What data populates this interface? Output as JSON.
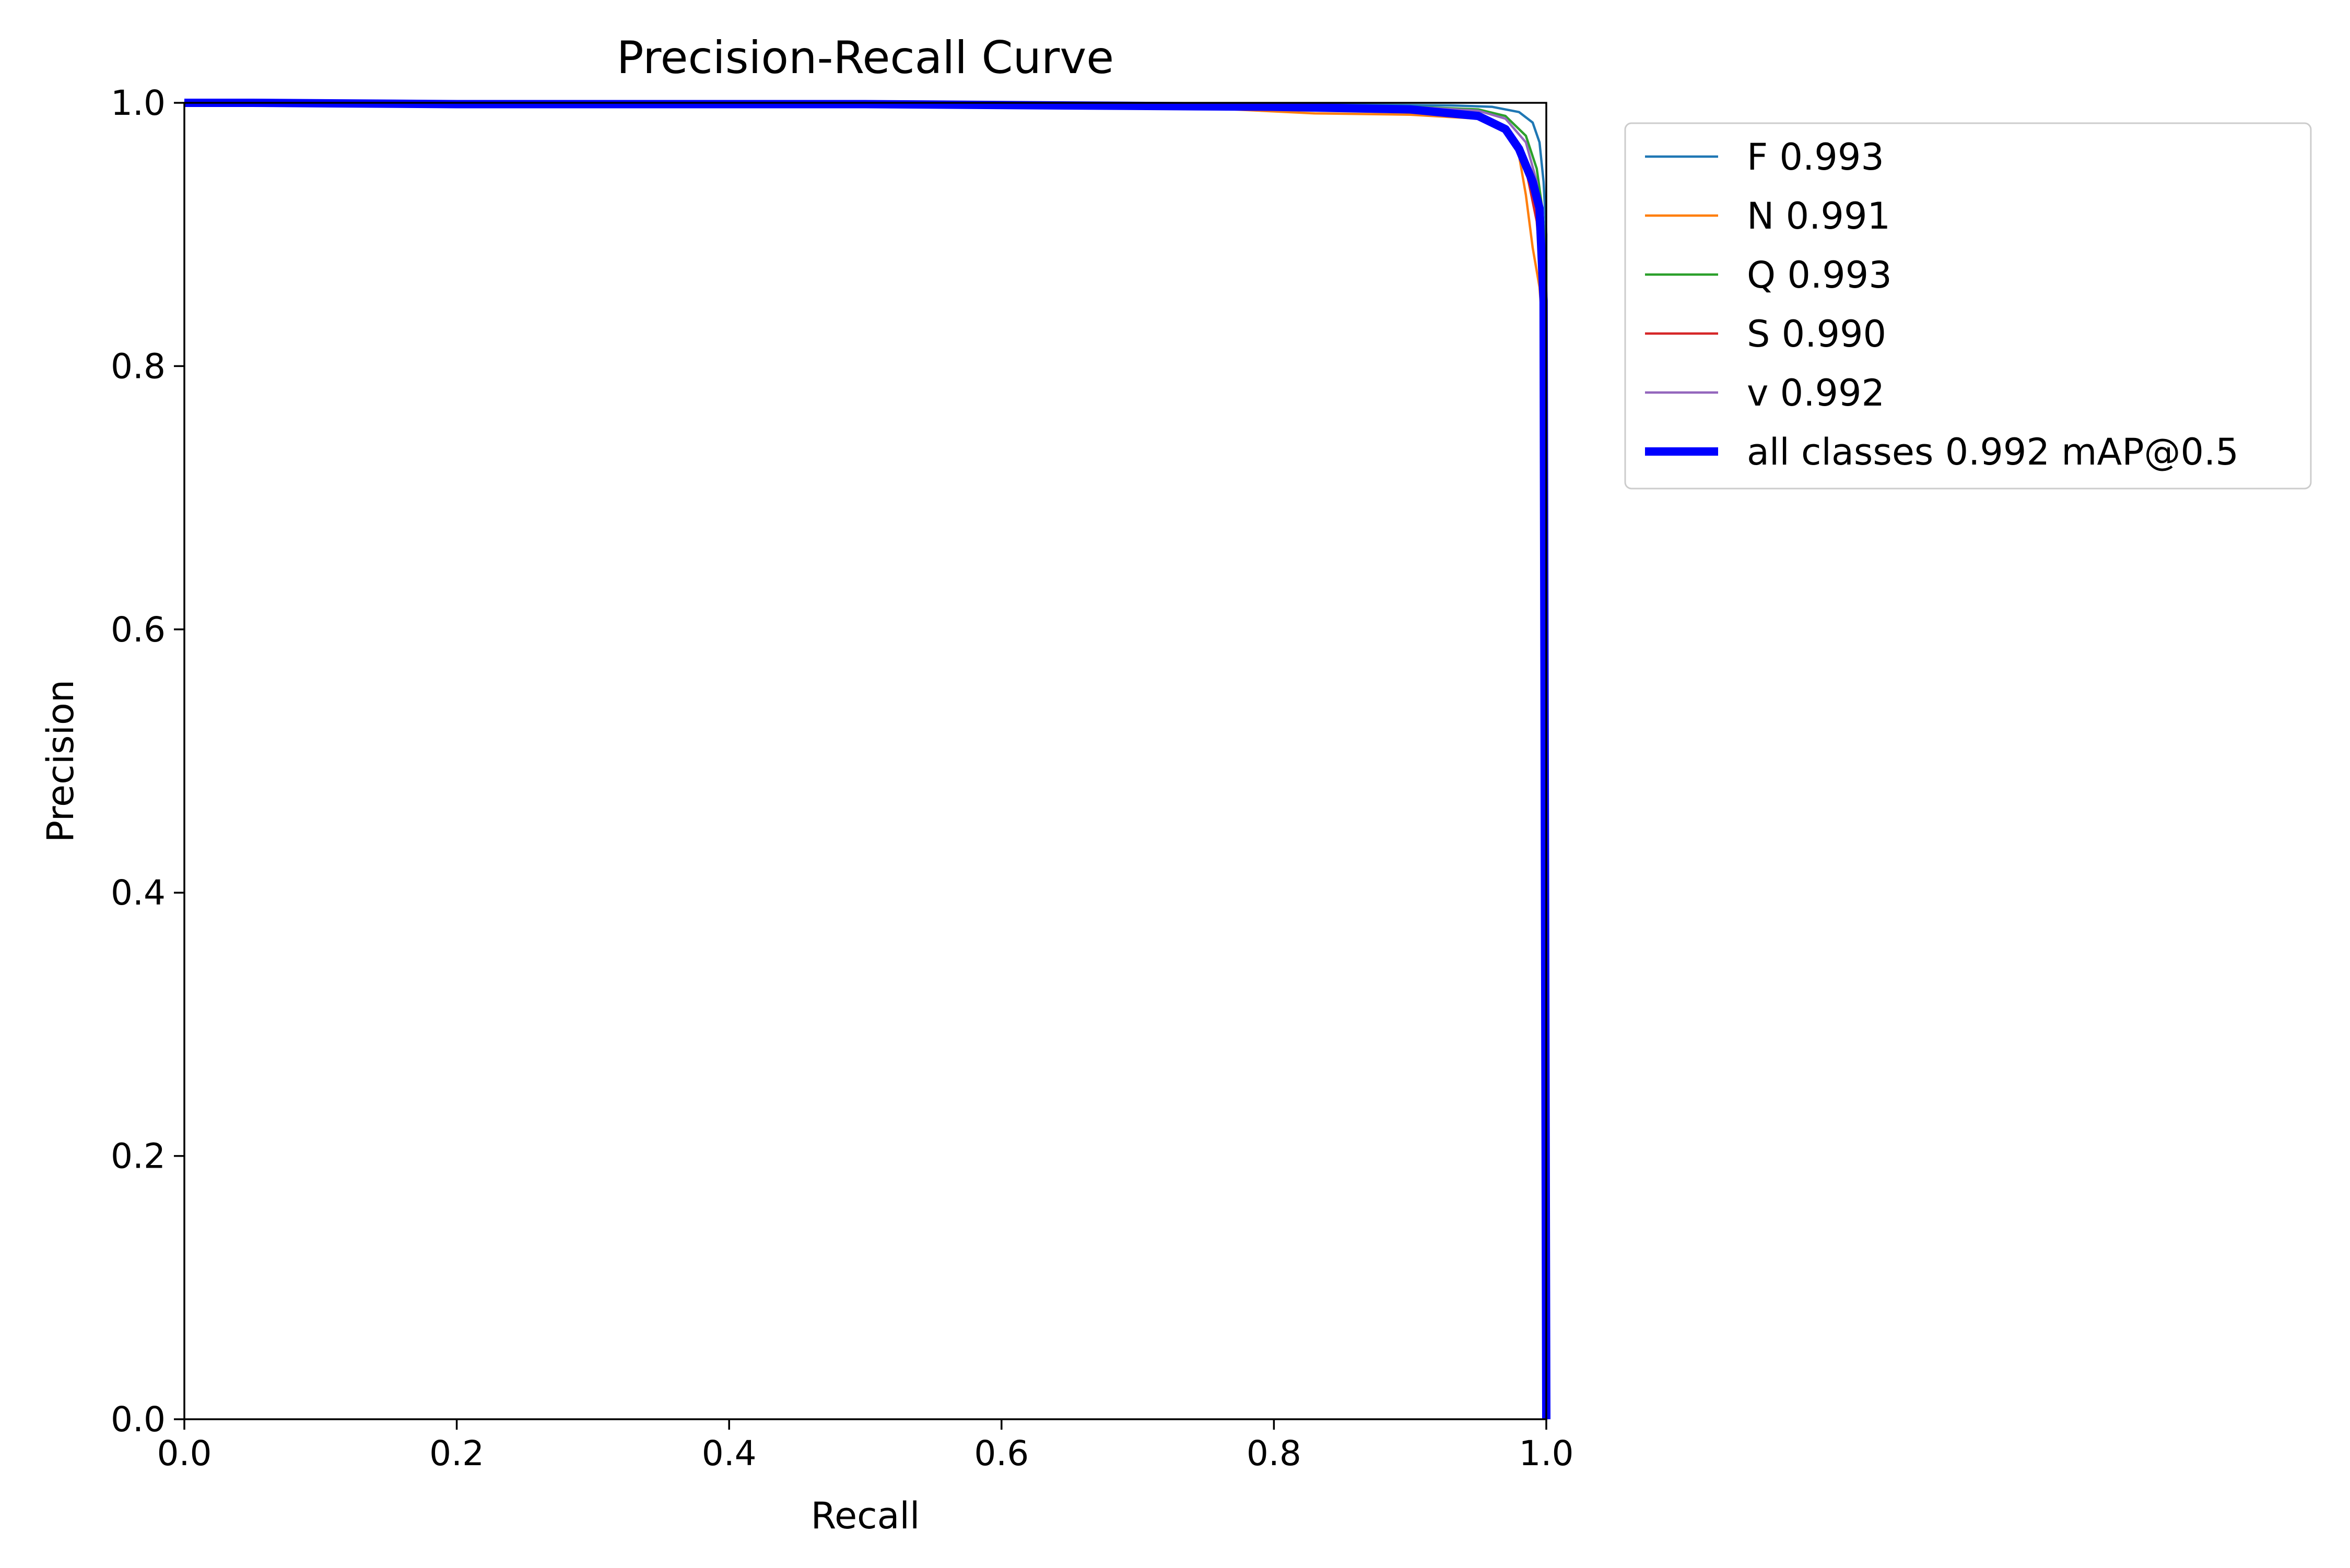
{
  "chart_data": {
    "type": "line",
    "title": "Precision-Recall Curve",
    "xlabel": "Recall",
    "ylabel": "Precision",
    "xlim": [
      0,
      1
    ],
    "ylim": [
      0,
      1
    ],
    "xticks": [
      "0.0",
      "0.2",
      "0.4",
      "0.6",
      "0.8",
      "1.0"
    ],
    "yticks": [
      "0.0",
      "0.2",
      "0.4",
      "0.6",
      "0.8",
      "1.0"
    ],
    "grid": false,
    "legend_position": "outside upper right",
    "series": [
      {
        "name": "F 0.993",
        "color": "#1f77b4",
        "emphasis": false,
        "x": [
          0,
          0.05,
          0.2,
          0.5,
          0.8,
          0.93,
          0.96,
          0.98,
          0.99,
          0.995,
          0.998,
          1.0,
          1.0
        ],
        "y": [
          1.0,
          1.0,
          1.0,
          1.0,
          0.999,
          0.998,
          0.997,
          0.993,
          0.985,
          0.97,
          0.94,
          0.9,
          0.0
        ]
      },
      {
        "name": "N 0.991",
        "color": "#ff7f0e",
        "emphasis": false,
        "x": [
          0,
          0.05,
          0.2,
          0.5,
          0.75,
          0.83,
          0.9,
          0.95,
          0.97,
          0.98,
          0.985,
          0.99,
          0.995,
          0.998,
          1.0
        ],
        "y": [
          1.0,
          0.999,
          0.998,
          0.998,
          0.996,
          0.992,
          0.991,
          0.988,
          0.98,
          0.96,
          0.93,
          0.89,
          0.86,
          0.82,
          0.0
        ]
      },
      {
        "name": "Q 0.993",
        "color": "#2ca02c",
        "emphasis": false,
        "x": [
          0,
          0.1,
          0.4,
          0.7,
          0.9,
          0.95,
          0.97,
          0.985,
          0.993,
          0.997,
          1.0,
          1.0
        ],
        "y": [
          1.0,
          1.0,
          1.0,
          0.999,
          0.997,
          0.995,
          0.99,
          0.975,
          0.95,
          0.92,
          0.88,
          0.0
        ]
      },
      {
        "name": "S 0.990",
        "color": "#d62728",
        "emphasis": false,
        "x": [
          0,
          0.1,
          0.4,
          0.7,
          0.85,
          0.93,
          0.96,
          0.975,
          0.985,
          0.993,
          0.997,
          1.0
        ],
        "y": [
          1.0,
          1.0,
          0.999,
          0.998,
          0.996,
          0.993,
          0.986,
          0.975,
          0.95,
          0.91,
          0.86,
          0.0
        ]
      },
      {
        "name": "v 0.992",
        "color": "#9467bd",
        "emphasis": false,
        "x": [
          0,
          0.1,
          0.4,
          0.7,
          0.9,
          0.95,
          0.97,
          0.985,
          0.993,
          0.997,
          1.0,
          1.0
        ],
        "y": [
          1.0,
          1.0,
          1.0,
          0.999,
          0.997,
          0.994,
          0.988,
          0.97,
          0.94,
          0.9,
          0.86,
          0.0
        ]
      },
      {
        "name": "all classes 0.992 mAP@0.5",
        "color": "#0000ff",
        "emphasis": true,
        "x": [
          0,
          0.05,
          0.2,
          0.5,
          0.8,
          0.9,
          0.95,
          0.97,
          0.98,
          0.99,
          0.995,
          0.998,
          1.0
        ],
        "y": [
          1.0,
          1.0,
          0.999,
          0.999,
          0.997,
          0.995,
          0.99,
          0.98,
          0.965,
          0.94,
          0.92,
          0.85,
          0.0
        ]
      }
    ]
  }
}
